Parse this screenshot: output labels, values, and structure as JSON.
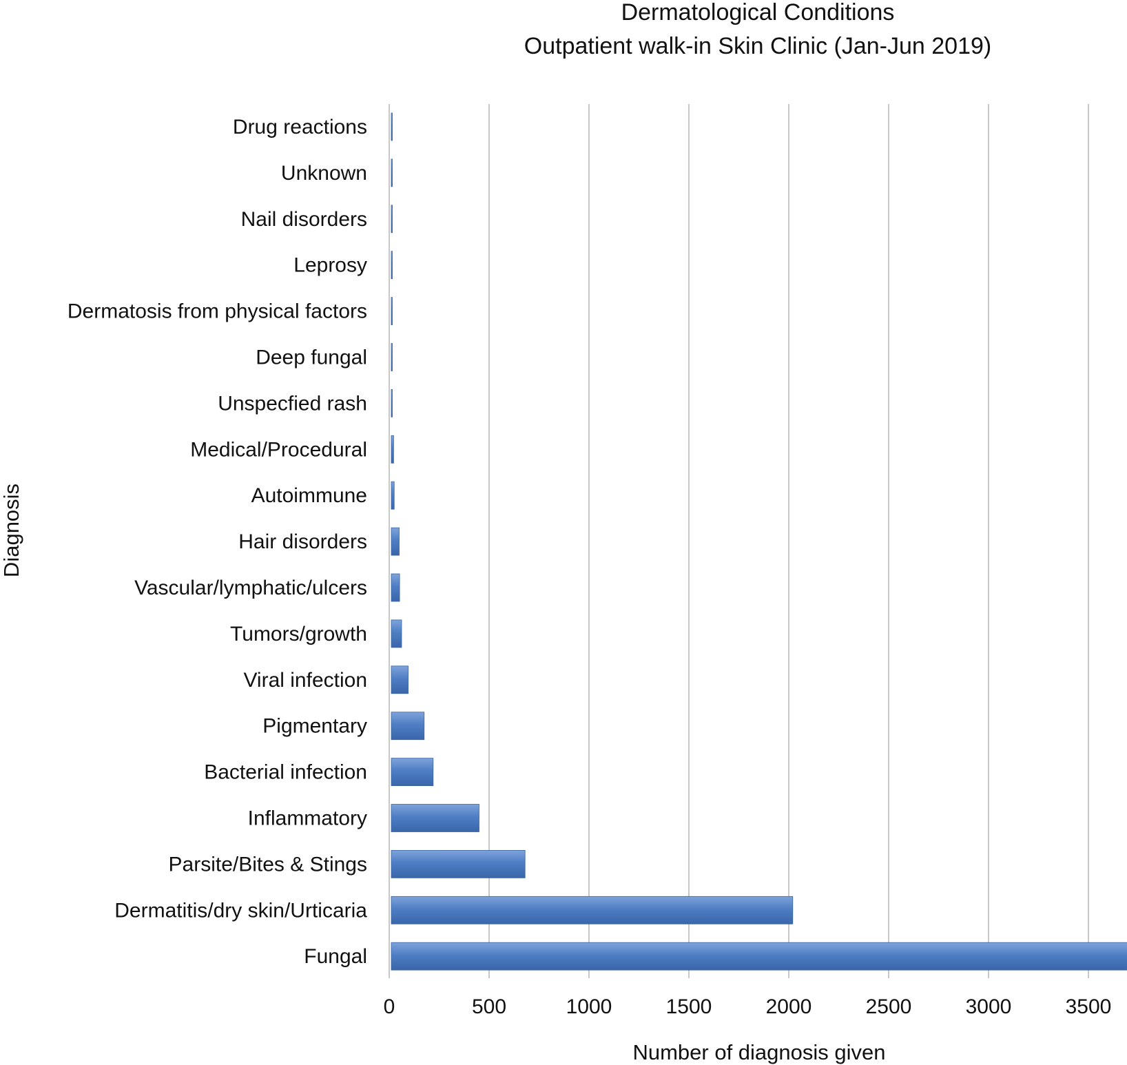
{
  "chart_data": {
    "type": "bar",
    "orientation": "horizontal",
    "title": "Dermatological Conditions",
    "subtitle": "Outpatient walk-in Skin Clinic (Jan-Jun 2019)",
    "xlabel": "Number of diagnosis given",
    "ylabel": "Diagnosis",
    "xlim": [
      0,
      3700
    ],
    "xticks": [
      0,
      500,
      1000,
      1500,
      2000,
      2500,
      3000,
      3500
    ],
    "grid": true,
    "categories": [
      "Drug reactions",
      "Unknown",
      "Nail disorders",
      "Leprosy",
      "Dermatosis from physical factors",
      "Deep fungal",
      "Unspecfied rash",
      "Medical/Procedural",
      "Autoimmune",
      "Hair disorders",
      "Vascular/lymphatic/ulcers",
      "Tumors/growth",
      "Viral infection",
      "Pigmentary",
      "Bacterial infection",
      "Inflammatory",
      "Parsite/Bites & Stings",
      "Dermatitis/dry skin/Urticaria",
      "Fungal"
    ],
    "values": [
      2,
      3,
      4,
      8,
      9,
      10,
      15,
      22,
      25,
      50,
      52,
      62,
      95,
      175,
      220,
      450,
      680,
      2020,
      3700
    ],
    "bar_color": "#4a78bf"
  }
}
